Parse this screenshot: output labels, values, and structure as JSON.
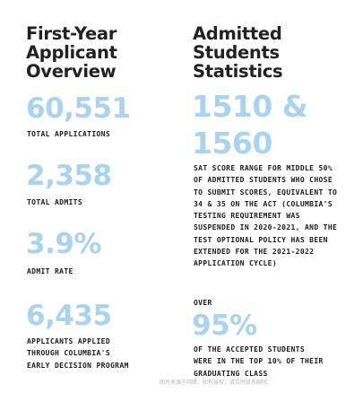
{
  "left": {
    "heading": "First-Year\nApplicant\nOverview",
    "stats": [
      {
        "value": "60,551",
        "label": "TOTAL APPLICATIONS"
      },
      {
        "value": "2,358",
        "label": "TOTAL ADMITS"
      },
      {
        "value": "3.9%",
        "label": "ADMIT RATE"
      },
      {
        "value": "6,435",
        "label": "APPLICANTS APPLIED\nTHROUGH COLUMBIA'S\nEARLY DECISION PROGRAM"
      }
    ]
  },
  "right": {
    "heading": "Admitted\nStudents\nStatistics",
    "sat_value": "1510 &\n1560",
    "sat_label": "SAT SCORE RANGE FOR MIDDLE 50%\nOF ADMITTED STUDENTS WHO CHOSE\nTO SUBMIT SCORES, EQUIVALENT TO\n34 & 35 ON THE ACT (COLUMBIA'S\nTESTING REQUIREMENT WAS\nSUSPENDED IN 2020-2021, AND THE\nTEST OPTIONAL POLICY HAS BEEN\nEXTENDED FOR THE 2021-2022\nAPPLICATION CYCLE)",
    "over_label": "OVER",
    "top_value": "95%",
    "top_label": "OF THE ACCEPTED STUDENTS\nWERE IN THE TOP 10% OF THEIR\nGRADUATING CLASS"
  },
  "watermark": "图片来源于网络，如有侵权，请及时联系删除。",
  "colors": {
    "accent": "#a9d3ef",
    "text": "#1c1c1c"
  }
}
